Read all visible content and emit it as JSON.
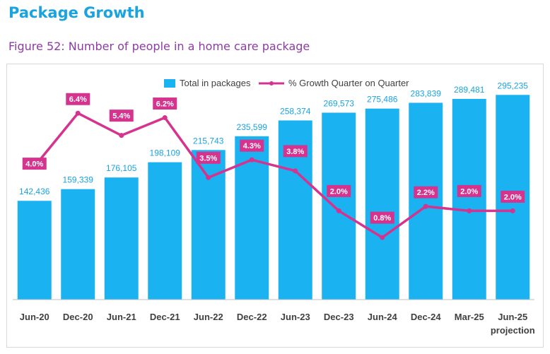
{
  "header": {
    "title": "Package Growth",
    "figure_caption": "Figure 52: Number of people in a home care package"
  },
  "colors": {
    "bar": "#1ab2f0",
    "line": "#d6338f",
    "title": "#19a3e0",
    "caption": "#8e3aa6"
  },
  "chart_data": {
    "type": "bar",
    "title": "",
    "categories": [
      "Jun-20",
      "Dec-20",
      "Jun-21",
      "Dec-21",
      "Jun-22",
      "Dec-22",
      "Jun-23",
      "Dec-23",
      "Jun-24",
      "Dec-24",
      "Mar-25",
      "Jun-25"
    ],
    "category_sublabels": [
      "",
      "",
      "",
      "",
      "",
      "",
      "",
      "",
      "",
      "",
      "",
      "projection"
    ],
    "series": [
      {
        "name": "Total in packages",
        "kind": "bar",
        "values": [
          142436,
          159339,
          176105,
          198109,
          215743,
          235599,
          258374,
          269573,
          275486,
          283839,
          289481,
          295235
        ],
        "labels": [
          "142,436",
          "159,339",
          "176,105",
          "198,109",
          "215,743",
          "235,599",
          "258,374",
          "269,573",
          "275,486",
          "283,839",
          "289,481",
          "295,235"
        ]
      },
      {
        "name": "% Growth Quarter on Quarter",
        "kind": "line",
        "values": [
          4.0,
          6.4,
          5.4,
          6.2,
          3.5,
          4.3,
          3.8,
          2.0,
          0.8,
          2.2,
          2.0,
          2.0
        ],
        "labels": [
          "4.0%",
          "6.4%",
          "5.4%",
          "6.2%",
          "3.5%",
          "4.3%",
          "3.8%",
          "2.0%",
          "0.8%",
          "2.2%",
          "2.0%",
          "2.0%"
        ]
      }
    ],
    "ylim_bars": [
      0,
      320000
    ],
    "ylim_line": [
      -2,
      8
    ],
    "legend_position": "top-center",
    "grid": false
  }
}
